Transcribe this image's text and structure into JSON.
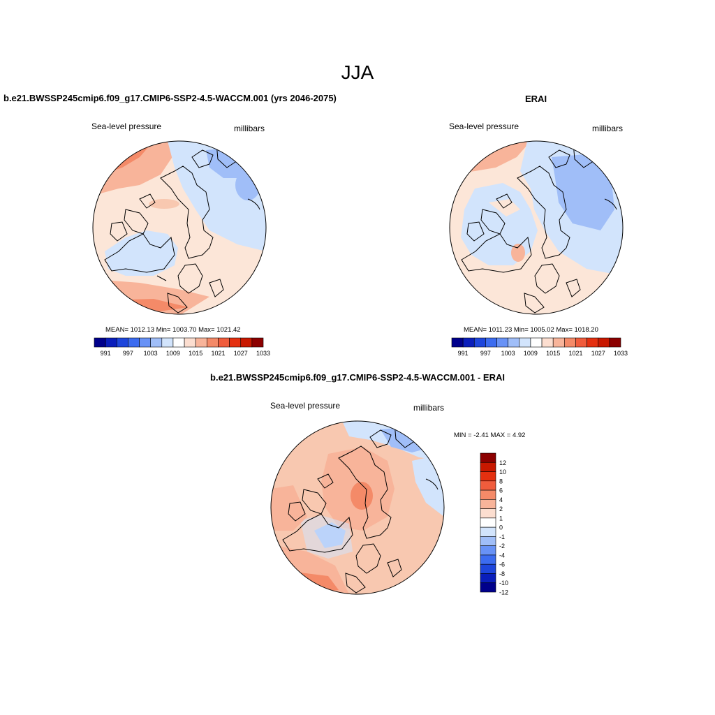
{
  "figure": {
    "season": "JJA",
    "colors": [
      "#00008b",
      "#0a1ebb",
      "#1e46dc",
      "#3c6cf0",
      "#6892f6",
      "#a0bef8",
      "#d2e4fc",
      "#ffffff",
      "#fcded0",
      "#f8b49a",
      "#f48a68",
      "#f05c3c",
      "#e43010",
      "#c81800",
      "#8c0000"
    ]
  },
  "panels": {
    "model": {
      "title": "b.e21.BWSSP245cmip6.f09_g17.CMIP6-SSP2-4.5-WACCM.001 (yrs 2046-2075)",
      "left_label": "Sea-level pressure",
      "right_label": "millibars",
      "stats": "MEAN= 1012.13  Min= 1003.70  Max= 1021.42",
      "colorbar_ticks": [
        "991",
        "997",
        "1003",
        "1009",
        "1015",
        "1021",
        "1027",
        "1033"
      ]
    },
    "obs": {
      "title": "ERAI",
      "left_label": "Sea-level pressure",
      "right_label": "millibars",
      "stats": "MEAN= 1011.23  Min= 1005.02  Max= 1018.20",
      "colorbar_ticks": [
        "991",
        "997",
        "1003",
        "1009",
        "1015",
        "1021",
        "1027",
        "1033"
      ]
    },
    "diff": {
      "title": "b.e21.BWSSP245cmip6.f09_g17.CMIP6-SSP2-4.5-WACCM.001 - ERAI",
      "left_label": "Sea-level pressure",
      "right_label": "millibars",
      "stats": "MIN =  -2.41 MAX =   4.92",
      "colorbar_ticks": [
        "12",
        "10",
        "8",
        "6",
        "4",
        "2",
        "1",
        "0",
        "-1",
        "-2",
        "-4",
        "-6",
        "-8",
        "-10",
        "-12"
      ]
    }
  }
}
